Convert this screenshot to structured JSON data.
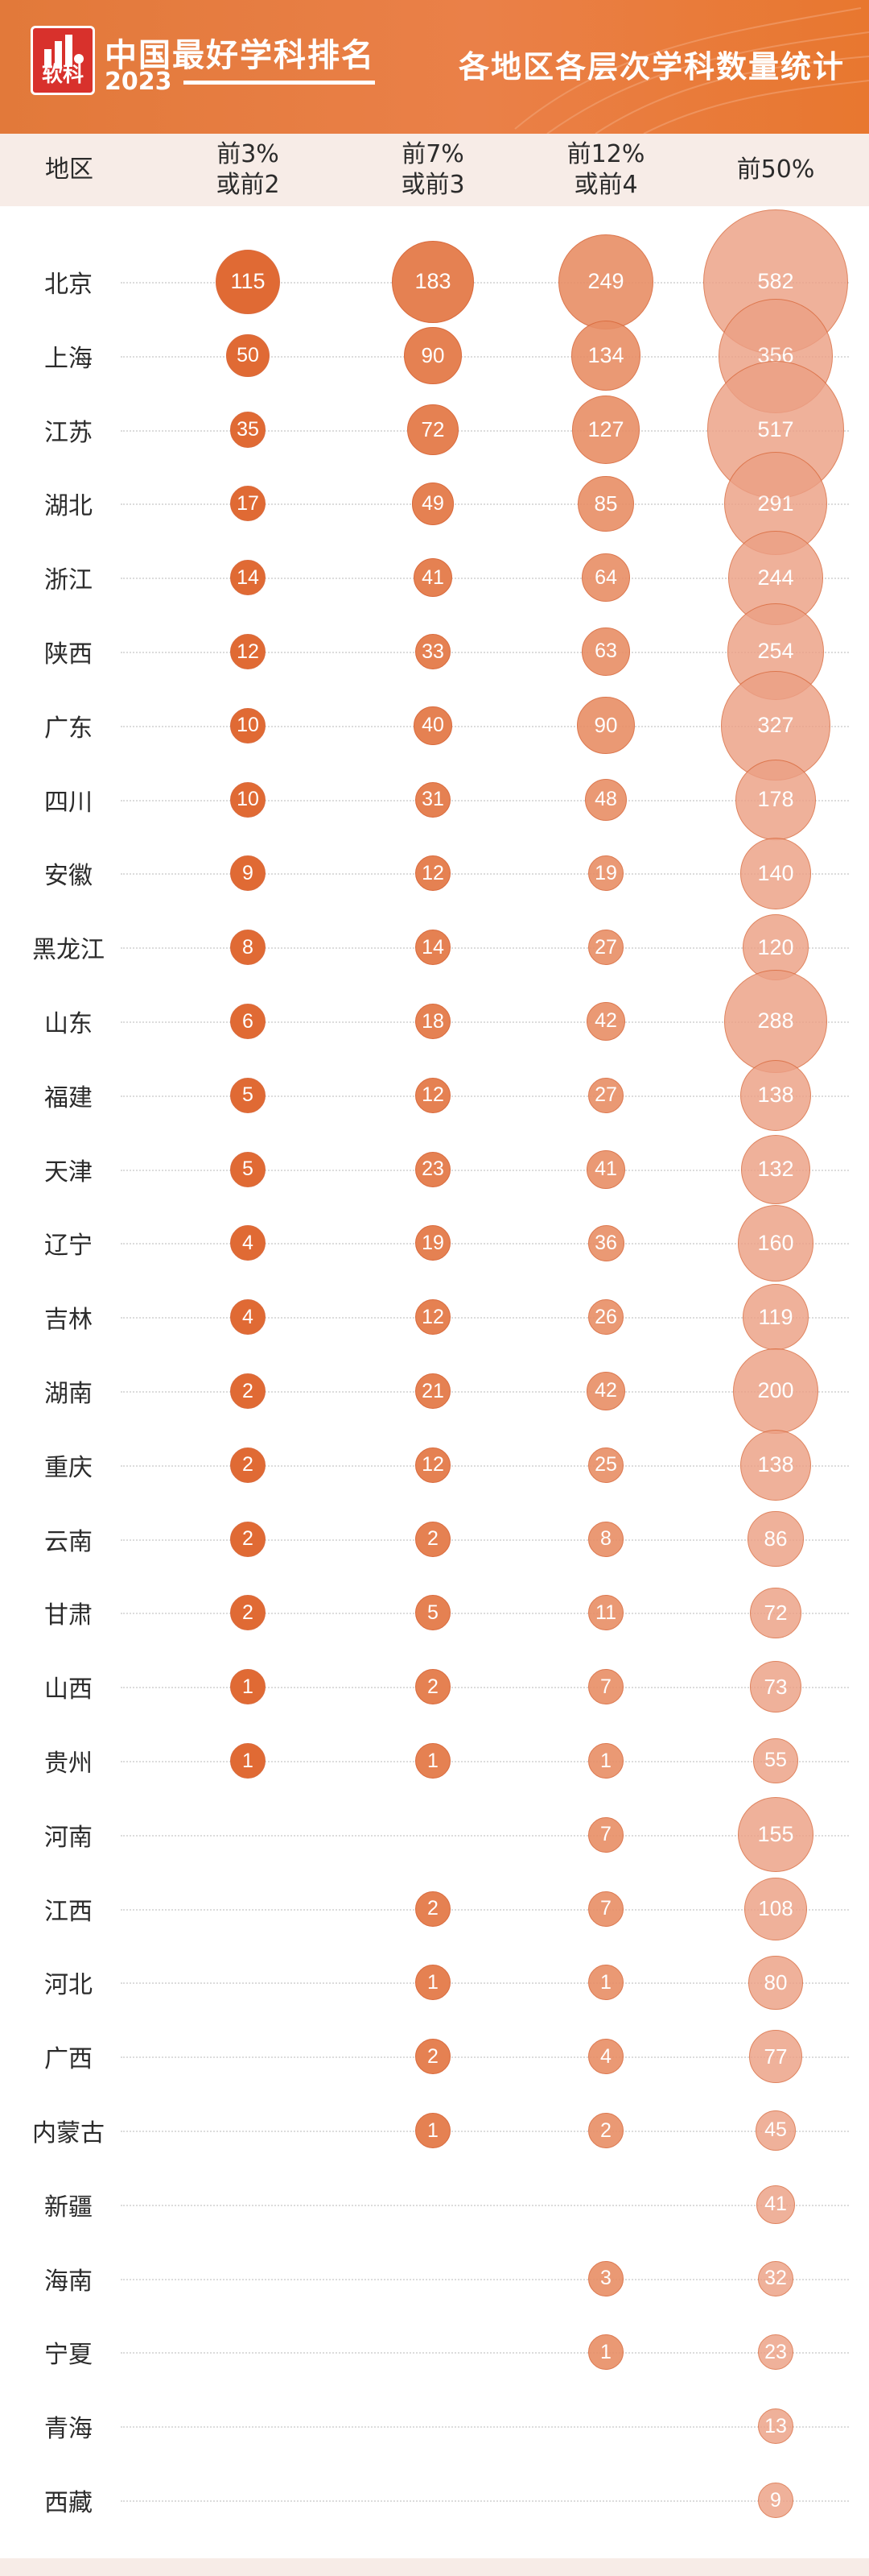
{
  "header": {
    "logo_text": "软科",
    "brand_title": "中国最好学科排名",
    "brand_year": "2023",
    "title": "各地区各层次学科数量统计"
  },
  "colors": {
    "header_orange": "#e8793a",
    "c1_fill": "#e06a34",
    "c2_fill": "#e58152",
    "c3_fill": "#e88e66",
    "c4_fill": "#eca085",
    "bubble_stroke": "#d96a3d"
  },
  "chart_data": {
    "type": "bubble_table",
    "columns": [
      {
        "key": "top3",
        "label_line1": "前3%",
        "label_line2": "或前2"
      },
      {
        "key": "top7",
        "label_line1": "前7%",
        "label_line2": "或前3"
      },
      {
        "key": "top12",
        "label_line1": "前12%",
        "label_line2": "或前4"
      },
      {
        "key": "top50",
        "label_line1": "前50%",
        "label_line2": ""
      }
    ],
    "row_header": "地区",
    "rows": [
      {
        "region": "北京",
        "values": [
          115,
          183,
          249,
          582
        ]
      },
      {
        "region": "上海",
        "values": [
          50,
          90,
          134,
          356
        ]
      },
      {
        "region": "江苏",
        "values": [
          35,
          72,
          127,
          517
        ]
      },
      {
        "region": "湖北",
        "values": [
          17,
          49,
          85,
          291
        ]
      },
      {
        "region": "浙江",
        "values": [
          14,
          41,
          64,
          244
        ]
      },
      {
        "region": "陕西",
        "values": [
          12,
          33,
          63,
          254
        ]
      },
      {
        "region": "广东",
        "values": [
          10,
          40,
          90,
          327
        ]
      },
      {
        "region": "四川",
        "values": [
          10,
          31,
          48,
          178
        ]
      },
      {
        "region": "安徽",
        "values": [
          9,
          12,
          19,
          140
        ]
      },
      {
        "region": "黑龙江",
        "values": [
          8,
          14,
          27,
          120
        ]
      },
      {
        "region": "山东",
        "values": [
          6,
          18,
          42,
          288
        ]
      },
      {
        "region": "福建",
        "values": [
          5,
          12,
          27,
          138
        ]
      },
      {
        "region": "天津",
        "values": [
          5,
          23,
          41,
          132
        ]
      },
      {
        "region": "辽宁",
        "values": [
          4,
          19,
          36,
          160
        ]
      },
      {
        "region": "吉林",
        "values": [
          4,
          12,
          26,
          119
        ]
      },
      {
        "region": "湖南",
        "values": [
          2,
          21,
          42,
          200
        ]
      },
      {
        "region": "重庆",
        "values": [
          2,
          12,
          25,
          138
        ]
      },
      {
        "region": "云南",
        "values": [
          2,
          2,
          8,
          86
        ]
      },
      {
        "region": "甘肃",
        "values": [
          2,
          5,
          11,
          72
        ]
      },
      {
        "region": "山西",
        "values": [
          1,
          2,
          7,
          73
        ]
      },
      {
        "region": "贵州",
        "values": [
          1,
          1,
          1,
          55
        ]
      },
      {
        "region": "河南",
        "values": [
          null,
          null,
          7,
          155
        ]
      },
      {
        "region": "江西",
        "values": [
          null,
          2,
          7,
          108
        ]
      },
      {
        "region": "河北",
        "values": [
          null,
          1,
          1,
          80
        ]
      },
      {
        "region": "广西",
        "values": [
          null,
          2,
          4,
          77
        ]
      },
      {
        "region": "内蒙古",
        "values": [
          null,
          1,
          2,
          45
        ]
      },
      {
        "region": "新疆",
        "values": [
          null,
          null,
          null,
          41
        ]
      },
      {
        "region": "海南",
        "values": [
          null,
          null,
          3,
          32
        ]
      },
      {
        "region": "宁夏",
        "values": [
          null,
          null,
          1,
          23
        ]
      },
      {
        "region": "青海",
        "values": [
          null,
          null,
          null,
          13
        ]
      },
      {
        "region": "西藏",
        "values": [
          null,
          null,
          null,
          9
        ]
      }
    ]
  }
}
